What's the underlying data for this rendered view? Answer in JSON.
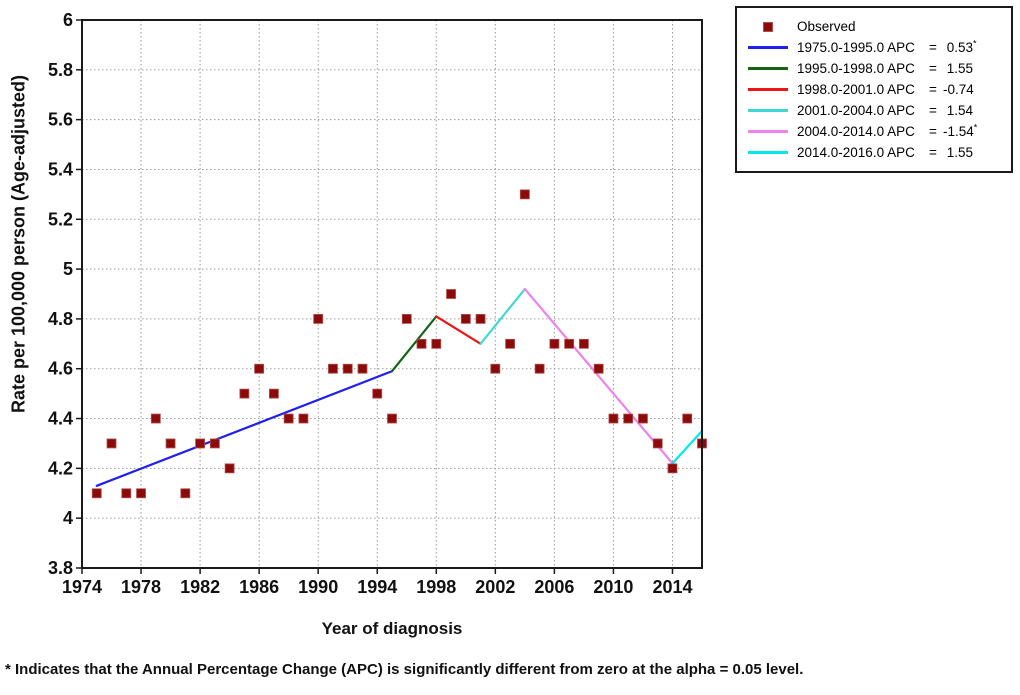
{
  "chart_data": {
    "type": "scatter",
    "title": "",
    "xlabel": "Year of diagnosis",
    "ylabel": "Rate per 100,000 person (Age-adjusted)",
    "xlim": [
      1974,
      2016
    ],
    "ylim": [
      3.8,
      6.0
    ],
    "x_ticks": [
      1974,
      1978,
      1982,
      1986,
      1990,
      1994,
      1998,
      2002,
      2006,
      2010,
      2014
    ],
    "y_tick_step": 0.2,
    "grid": true,
    "legend_position": "top-right-outside",
    "observed": {
      "label": "Observed",
      "marker": "square",
      "color": "#8B0B0B",
      "years": [
        1975,
        1976,
        1977,
        1978,
        1979,
        1980,
        1981,
        1982,
        1983,
        1984,
        1985,
        1986,
        1987,
        1988,
        1989,
        1990,
        1991,
        1992,
        1993,
        1994,
        1995,
        1996,
        1997,
        1998,
        1999,
        2000,
        2001,
        2002,
        2003,
        2004,
        2005,
        2006,
        2007,
        2008,
        2009,
        2010,
        2011,
        2012,
        2013,
        2014,
        2015,
        2016
      ],
      "values": [
        4.1,
        4.3,
        4.1,
        4.1,
        4.4,
        4.3,
        4.1,
        4.3,
        4.3,
        4.2,
        4.5,
        4.6,
        4.5,
        4.4,
        4.4,
        4.8,
        4.6,
        4.6,
        4.6,
        4.5,
        4.4,
        4.8,
        4.7,
        4.7,
        4.9,
        4.8,
        4.8,
        4.6,
        4.7,
        5.3,
        4.6,
        4.7,
        4.7,
        4.7,
        4.6,
        4.4,
        4.4,
        4.4,
        4.3,
        4.2,
        4.4,
        4.3
      ]
    },
    "apc_segments": [
      {
        "label": "1975.0-1995.0 APC",
        "apc": "0.53",
        "significant": true,
        "color": "#2020EE",
        "x": [
          1975,
          1995
        ],
        "y": [
          4.13,
          4.59
        ]
      },
      {
        "label": "1995.0-1998.0 APC",
        "apc": "1.55",
        "significant": false,
        "color": "#146414",
        "x": [
          1995,
          1998
        ],
        "y": [
          4.59,
          4.81
        ]
      },
      {
        "label": "1998.0-2001.0 APC",
        "apc": "-0.74",
        "significant": false,
        "color": "#EE1515",
        "x": [
          1998,
          2001
        ],
        "y": [
          4.81,
          4.7
        ]
      },
      {
        "label": "2001.0-2004.0 APC",
        "apc": "1.54",
        "significant": false,
        "color": "#3FD9D4",
        "x": [
          2001,
          2004
        ],
        "y": [
          4.7,
          4.92
        ]
      },
      {
        "label": "2004.0-2014.0 APC",
        "apc": "-1.54",
        "significant": true,
        "color": "#EE82EE",
        "x": [
          2004,
          2014
        ],
        "y": [
          4.92,
          4.22
        ]
      },
      {
        "label": "2014.0-2016.0 APC",
        "apc": "1.55",
        "significant": false,
        "color": "#00E8EE",
        "x": [
          2014,
          2016
        ],
        "y": [
          4.22,
          4.35
        ]
      }
    ],
    "equals_sign": "=",
    "footnote": "* Indicates that the Annual Percentage Change (APC) is significantly different from zero at the alpha = 0.05 level."
  }
}
